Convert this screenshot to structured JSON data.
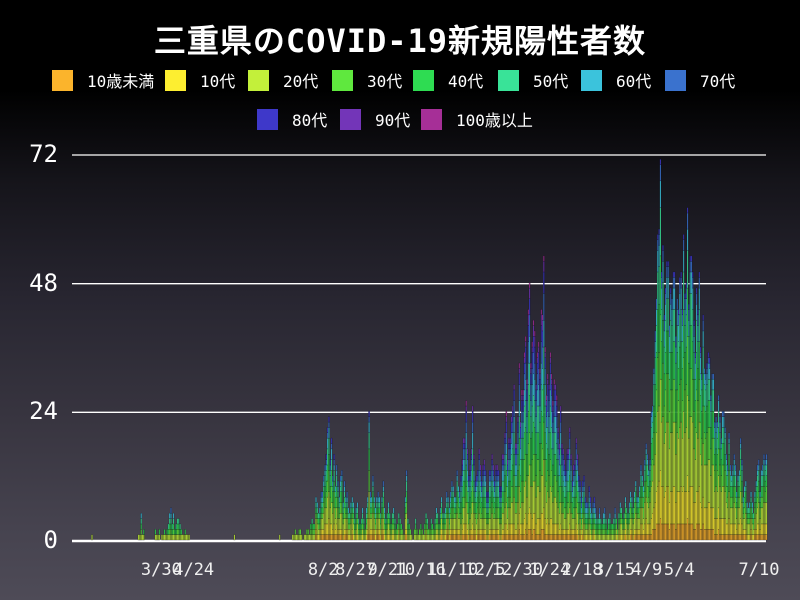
{
  "title": "三重県のCOVID-19新規陽性者数",
  "chart_data": {
    "type": "bar",
    "variant": "stacked-daily-by-age",
    "title": "三重県のCOVID-19新規陽性者数",
    "legend_position": "top",
    "grid": true,
    "background": {
      "top": "#000000",
      "bottom": "#4e4b57"
    },
    "y_axis": {
      "ticks": [
        0,
        24,
        48,
        72
      ],
      "max": 72,
      "min": 0
    },
    "x_axis": {
      "start_date": "2020-01-21",
      "end_date": "2021-07-10",
      "tick_labels": [
        {
          "label": "3/30",
          "day": 69
        },
        {
          "label": "4/24",
          "day": 94
        },
        {
          "label": "8/2",
          "day": 194
        },
        {
          "label": "8/27",
          "day": 219
        },
        {
          "label": "9/21",
          "day": 244
        },
        {
          "label": "10/16",
          "day": 269
        },
        {
          "label": "11/10",
          "day": 294
        },
        {
          "label": "12/5",
          "day": 319
        },
        {
          "label": "12/30",
          "day": 344
        },
        {
          "label": "1/24",
          "day": 369
        },
        {
          "label": "2/18",
          "day": 394
        },
        {
          "label": "3/15",
          "day": 419
        },
        {
          "label": "4/9",
          "day": 444
        },
        {
          "label": "5/4",
          "day": 469
        },
        {
          "label": "7/10",
          "day": 536
        }
      ]
    },
    "age_groups": [
      {
        "label": "10歳未満",
        "color": "#FBB42C"
      },
      {
        "label": "10代",
        "color": "#FDEE30"
      },
      {
        "label": "20代",
        "color": "#C3F03A"
      },
      {
        "label": "30代",
        "color": "#5FE83E"
      },
      {
        "label": "40代",
        "color": "#2EDC52"
      },
      {
        "label": "50代",
        "color": "#39E398"
      },
      {
        "label": "60代",
        "color": "#3BC3DC"
      },
      {
        "label": "70代",
        "color": "#3A72CE"
      },
      {
        "label": "80代",
        "color": "#3E38C9"
      },
      {
        "label": "90代",
        "color": "#7335B8"
      },
      {
        "label": "100歳以上",
        "color": "#A62F97"
      }
    ],
    "age_share_profiles": {
      "early": [
        0.03,
        0.05,
        0.17,
        0.14,
        0.16,
        0.16,
        0.12,
        0.09,
        0.05,
        0.02,
        0.01
      ],
      "default": [
        0.05,
        0.11,
        0.22,
        0.16,
        0.15,
        0.12,
        0.08,
        0.05,
        0.035,
        0.015,
        0.005
      ],
      "winter": [
        0.04,
        0.08,
        0.16,
        0.13,
        0.14,
        0.13,
        0.1,
        0.09,
        0.07,
        0.04,
        0.02
      ],
      "spring": [
        0.06,
        0.13,
        0.24,
        0.17,
        0.15,
        0.12,
        0.07,
        0.04,
        0.013,
        0.005,
        0.002
      ]
    },
    "profile_day_ranges": [
      {
        "until": 160,
        "profile": "early"
      },
      {
        "until": 300,
        "profile": "default"
      },
      {
        "until": 420,
        "profile": "winter"
      },
      {
        "until": 537,
        "profile": "spring"
      }
    ],
    "daily_total_keyframes": [
      [
        0,
        0
      ],
      [
        14,
        0
      ],
      [
        15,
        1
      ],
      [
        16,
        0
      ],
      [
        49,
        0
      ],
      [
        52,
        1
      ],
      [
        53,
        5
      ],
      [
        54,
        1
      ],
      [
        55,
        2
      ],
      [
        56,
        0
      ],
      [
        63,
        0
      ],
      [
        64,
        2
      ],
      [
        65,
        1
      ],
      [
        67,
        2
      ],
      [
        68,
        0
      ],
      [
        71,
        2
      ],
      [
        72,
        1
      ],
      [
        74,
        3
      ],
      [
        76,
        6
      ],
      [
        77,
        3
      ],
      [
        78,
        5
      ],
      [
        79,
        2
      ],
      [
        81,
        4
      ],
      [
        83,
        3
      ],
      [
        85,
        1
      ],
      [
        87,
        2
      ],
      [
        89,
        1
      ],
      [
        91,
        0
      ],
      [
        124,
        0
      ],
      [
        125,
        1
      ],
      [
        126,
        0
      ],
      [
        159,
        0
      ],
      [
        160,
        1
      ],
      [
        161,
        0
      ],
      [
        169,
        0
      ],
      [
        170,
        1
      ],
      [
        172,
        2
      ],
      [
        174,
        1
      ],
      [
        176,
        2
      ],
      [
        178,
        0
      ],
      [
        181,
        2
      ],
      [
        183,
        1
      ],
      [
        185,
        4
      ],
      [
        187,
        3
      ],
      [
        188,
        8
      ],
      [
        190,
        5
      ],
      [
        192,
        9
      ],
      [
        194,
        12
      ],
      [
        196,
        16
      ],
      [
        198,
        23
      ],
      [
        199,
        15
      ],
      [
        200,
        19
      ],
      [
        201,
        12
      ],
      [
        202,
        16
      ],
      [
        203,
        10
      ],
      [
        204,
        14
      ],
      [
        206,
        8
      ],
      [
        208,
        13
      ],
      [
        209,
        7
      ],
      [
        210,
        11
      ],
      [
        212,
        9
      ],
      [
        214,
        5
      ],
      [
        216,
        8
      ],
      [
        218,
        4
      ],
      [
        220,
        7
      ],
      [
        222,
        3
      ],
      [
        224,
        6
      ],
      [
        226,
        2
      ],
      [
        228,
        8
      ],
      [
        229,
        24
      ],
      [
        230,
        9
      ],
      [
        232,
        12
      ],
      [
        234,
        6
      ],
      [
        236,
        9
      ],
      [
        238,
        5
      ],
      [
        240,
        11
      ],
      [
        242,
        4
      ],
      [
        244,
        7
      ],
      [
        246,
        3
      ],
      [
        248,
        6
      ],
      [
        250,
        2
      ],
      [
        252,
        5
      ],
      [
        254,
        3
      ],
      [
        256,
        1
      ],
      [
        258,
        13
      ],
      [
        259,
        4
      ],
      [
        261,
        2
      ],
      [
        263,
        0
      ],
      [
        265,
        4
      ],
      [
        267,
        1
      ],
      [
        269,
        3
      ],
      [
        271,
        1
      ],
      [
        273,
        5
      ],
      [
        275,
        2
      ],
      [
        277,
        4
      ],
      [
        279,
        2
      ],
      [
        281,
        6
      ],
      [
        283,
        3
      ],
      [
        285,
        8
      ],
      [
        287,
        5
      ],
      [
        289,
        9
      ],
      [
        291,
        6
      ],
      [
        293,
        11
      ],
      [
        295,
        8
      ],
      [
        297,
        13
      ],
      [
        299,
        9
      ],
      [
        301,
        15
      ],
      [
        303,
        19
      ],
      [
        304,
        26
      ],
      [
        305,
        17
      ],
      [
        307,
        14
      ],
      [
        309,
        25
      ],
      [
        310,
        16
      ],
      [
        312,
        12
      ],
      [
        314,
        17
      ],
      [
        316,
        11
      ],
      [
        318,
        15
      ],
      [
        320,
        9
      ],
      [
        322,
        13
      ],
      [
        324,
        16
      ],
      [
        326,
        11
      ],
      [
        328,
        14
      ],
      [
        330,
        10
      ],
      [
        332,
        16
      ],
      [
        334,
        20
      ],
      [
        335,
        24
      ],
      [
        336,
        15
      ],
      [
        338,
        19
      ],
      [
        340,
        25
      ],
      [
        341,
        29
      ],
      [
        342,
        18
      ],
      [
        344,
        23
      ],
      [
        345,
        33
      ],
      [
        346,
        22
      ],
      [
        348,
        28
      ],
      [
        350,
        38
      ],
      [
        351,
        30
      ],
      [
        353,
        48
      ],
      [
        354,
        33
      ],
      [
        356,
        41
      ],
      [
        358,
        29
      ],
      [
        360,
        37
      ],
      [
        362,
        43
      ],
      [
        364,
        53
      ],
      [
        365,
        36
      ],
      [
        367,
        31
      ],
      [
        369,
        35
      ],
      [
        371,
        26
      ],
      [
        373,
        29
      ],
      [
        375,
        21
      ],
      [
        377,
        25
      ],
      [
        379,
        17
      ],
      [
        381,
        13
      ],
      [
        383,
        17
      ],
      [
        384,
        21
      ],
      [
        386,
        11
      ],
      [
        388,
        15
      ],
      [
        389,
        19
      ],
      [
        391,
        12
      ],
      [
        393,
        8
      ],
      [
        395,
        12
      ],
      [
        397,
        7
      ],
      [
        399,
        10
      ],
      [
        401,
        5
      ],
      [
        403,
        8
      ],
      [
        405,
        4
      ],
      [
        407,
        6
      ],
      [
        409,
        3
      ],
      [
        411,
        6
      ],
      [
        413,
        2
      ],
      [
        415,
        5
      ],
      [
        417,
        3
      ],
      [
        419,
        6
      ],
      [
        421,
        2
      ],
      [
        423,
        7
      ],
      [
        425,
        4
      ],
      [
        427,
        8
      ],
      [
        429,
        5
      ],
      [
        431,
        9
      ],
      [
        433,
        6
      ],
      [
        435,
        11
      ],
      [
        437,
        8
      ],
      [
        439,
        14
      ],
      [
        441,
        10
      ],
      [
        443,
        18
      ],
      [
        445,
        13
      ],
      [
        447,
        24
      ],
      [
        449,
        32
      ],
      [
        451,
        45
      ],
      [
        453,
        58
      ],
      [
        454,
        71
      ],
      [
        455,
        50
      ],
      [
        456,
        55
      ],
      [
        457,
        42
      ],
      [
        458,
        47
      ],
      [
        460,
        52
      ],
      [
        461,
        40
      ],
      [
        463,
        45
      ],
      [
        465,
        50
      ],
      [
        466,
        38
      ],
      [
        468,
        43
      ],
      [
        470,
        50
      ],
      [
        472,
        57
      ],
      [
        474,
        48
      ],
      [
        475,
        62
      ],
      [
        476,
        44
      ],
      [
        478,
        53
      ],
      [
        480,
        41
      ],
      [
        482,
        47
      ],
      [
        484,
        50
      ],
      [
        485,
        36
      ],
      [
        487,
        42
      ],
      [
        489,
        31
      ],
      [
        491,
        35
      ],
      [
        493,
        27
      ],
      [
        495,
        31
      ],
      [
        497,
        23
      ],
      [
        499,
        27
      ],
      [
        501,
        19
      ],
      [
        503,
        24
      ],
      [
        505,
        16
      ],
      [
        507,
        20
      ],
      [
        509,
        12
      ],
      [
        511,
        16
      ],
      [
        513,
        9
      ],
      [
        515,
        13
      ],
      [
        516,
        19
      ],
      [
        518,
        8
      ],
      [
        520,
        11
      ],
      [
        522,
        6
      ],
      [
        524,
        9
      ],
      [
        526,
        5
      ],
      [
        528,
        11
      ],
      [
        530,
        15
      ],
      [
        531,
        9
      ],
      [
        533,
        14
      ],
      [
        536,
        16
      ]
    ]
  }
}
